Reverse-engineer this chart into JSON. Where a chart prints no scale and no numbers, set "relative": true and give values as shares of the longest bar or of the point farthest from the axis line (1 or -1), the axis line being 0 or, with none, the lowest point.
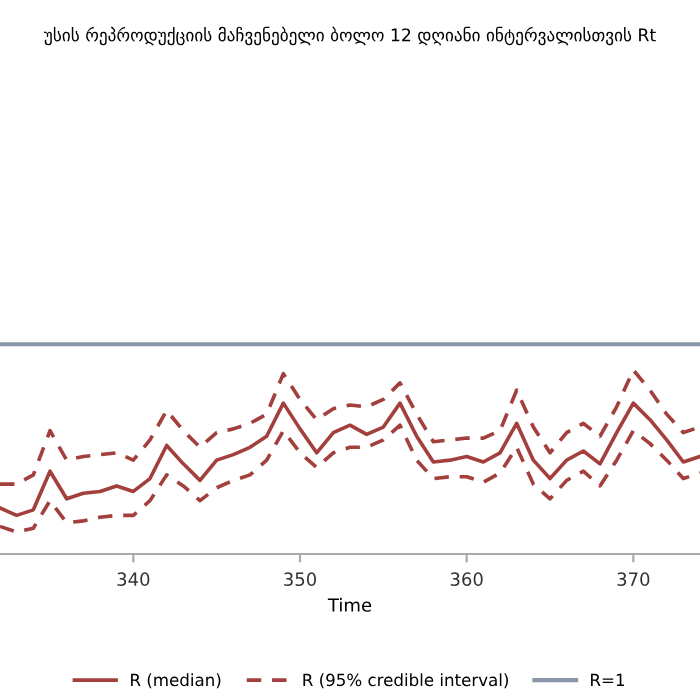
{
  "chart_data": {
    "type": "line",
    "title": "უსის რეპროდუქციის მაჩვენებელი ბოლო 12 დღიანი ინტერვალისთვის Rt",
    "xlabel": "Time",
    "relative": true,
    "x": [
      332,
      333,
      334,
      335,
      336,
      337,
      338,
      339,
      340,
      341,
      342,
      343,
      344,
      345,
      346,
      347,
      348,
      349,
      350,
      351,
      352,
      353,
      354,
      355,
      356,
      357,
      358,
      359,
      360,
      361,
      362,
      363,
      364,
      365,
      366,
      367,
      368,
      369,
      370,
      371,
      372,
      373,
      374
    ],
    "xlim": [
      332,
      374
    ],
    "xticks": [
      340,
      350,
      360,
      370
    ],
    "series": [
      {
        "name": "R (median)",
        "color": "#a3403d",
        "line_style": "solid",
        "values": [
          0.25,
          0.21,
          0.24,
          0.45,
          0.3,
          0.33,
          0.34,
          0.37,
          0.34,
          0.41,
          0.59,
          0.49,
          0.4,
          0.51,
          0.54,
          0.58,
          0.64,
          0.82,
          0.68,
          0.55,
          0.66,
          0.7,
          0.65,
          0.69,
          0.82,
          0.64,
          0.5,
          0.51,
          0.53,
          0.5,
          0.55,
          0.71,
          0.51,
          0.41,
          0.51,
          0.56,
          0.49,
          0.66,
          0.82,
          0.73,
          0.62,
          0.5,
          0.53
        ]
      },
      {
        "name": "R (95% credible interval)",
        "color": "#a3403d",
        "line_style": "dashed",
        "values": [
          0.38,
          0.38,
          0.43,
          0.67,
          0.51,
          0.53,
          0.54,
          0.55,
          0.51,
          0.62,
          0.78,
          0.67,
          0.58,
          0.66,
          0.68,
          0.71,
          0.76,
          0.98,
          0.84,
          0.73,
          0.79,
          0.81,
          0.8,
          0.84,
          0.93,
          0.76,
          0.61,
          0.62,
          0.63,
          0.63,
          0.67,
          0.89,
          0.69,
          0.55,
          0.66,
          0.71,
          0.64,
          0.8,
          1,
          0.89,
          0.76,
          0.66,
          0.69
        ]
      },
      {
        "color": "#a3403d",
        "line_style": "dashed",
        "values": [
          0.15,
          0.12,
          0.14,
          0.29,
          0.17,
          0.18,
          0.2,
          0.21,
          0.21,
          0.29,
          0.43,
          0.37,
          0.29,
          0.36,
          0.4,
          0.43,
          0.51,
          0.67,
          0.55,
          0.47,
          0.55,
          0.58,
          0.58,
          0.62,
          0.7,
          0.51,
          0.41,
          0.42,
          0.42,
          0.39,
          0.44,
          0.58,
          0.38,
          0.3,
          0.4,
          0.45,
          0.37,
          0.51,
          0.67,
          0.6,
          0.51,
          0.41,
          0.44
        ]
      }
    ],
    "ref_lines": [
      {
        "axis": "y",
        "value": 1.14,
        "label": "R=1",
        "color": "#8a97a8",
        "line_style": "solid"
      }
    ],
    "legend": "bottom",
    "grid": false,
    "marker": "none"
  }
}
